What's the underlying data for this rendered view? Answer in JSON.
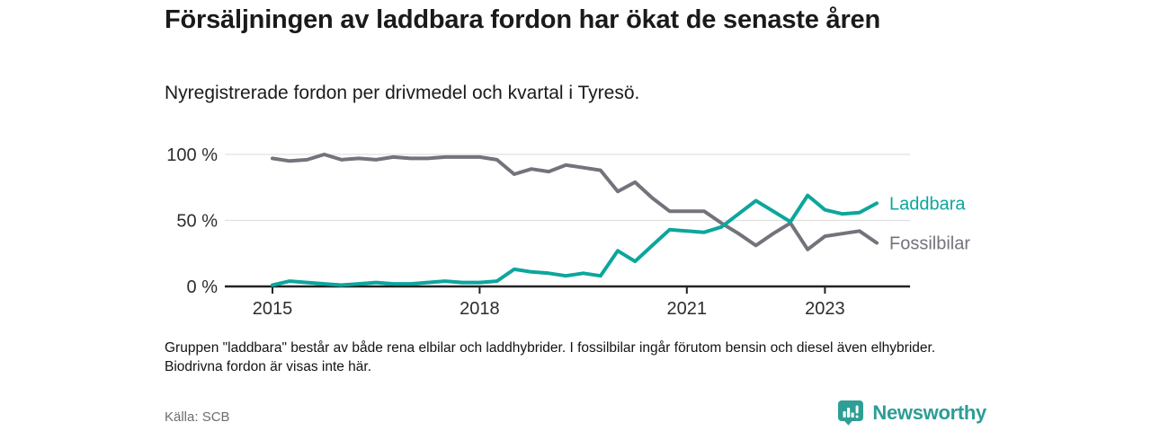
{
  "header": {
    "title": "Försäljningen av laddbara fordon har ökat de senaste åren",
    "subtitle": "Nyregistrerade fordon per drivmedel och kvartal i Tyresö."
  },
  "chart_data": {
    "type": "line",
    "title": "Nyregistrerade fordon per drivmedel och kvartal i Tyresö",
    "x_unit": "quarter",
    "quarters": [
      "2015 Q1",
      "2015 Q2",
      "2015 Q3",
      "2015 Q4",
      "2016 Q1",
      "2016 Q2",
      "2016 Q3",
      "2016 Q4",
      "2017 Q1",
      "2017 Q2",
      "2017 Q3",
      "2017 Q4",
      "2018 Q1",
      "2018 Q2",
      "2018 Q3",
      "2018 Q4",
      "2019 Q1",
      "2019 Q2",
      "2019 Q3",
      "2019 Q4",
      "2020 Q1",
      "2020 Q2",
      "2020 Q3",
      "2020 Q4",
      "2021 Q1",
      "2021 Q2",
      "2021 Q3",
      "2021 Q4",
      "2022 Q1",
      "2022 Q2",
      "2022 Q3",
      "2022 Q4",
      "2023 Q1",
      "2023 Q2",
      "2023 Q3",
      "2023 Q4"
    ],
    "series": [
      {
        "name": "Fossilbilar",
        "color": "#73737c",
        "values": [
          97,
          95,
          96,
          100,
          96,
          97,
          96,
          98,
          97,
          97,
          98,
          98,
          98,
          96,
          85,
          89,
          87,
          92,
          90,
          88,
          72,
          79,
          67,
          57,
          57,
          57,
          48,
          40,
          31,
          40,
          48,
          28,
          38,
          40,
          42,
          33
        ]
      },
      {
        "name": "Laddbara",
        "color": "#0ca69d",
        "values": [
          1,
          4,
          3,
          2,
          1,
          2,
          3,
          2,
          2,
          3,
          4,
          3,
          3,
          4,
          13,
          11,
          10,
          8,
          10,
          8,
          27,
          19,
          31,
          43,
          42,
          41,
          45,
          55,
          65,
          57,
          49,
          69,
          58,
          55,
          56,
          63
        ]
      }
    ],
    "ylim": [
      0,
      100
    ],
    "yticks": [
      "100 %",
      "50 %",
      "0 %"
    ],
    "ytick_values": [
      100,
      50,
      0
    ],
    "xticks": [
      {
        "label": "2015",
        "quarter_index": 0
      },
      {
        "label": "2018",
        "quarter_index": 12
      },
      {
        "label": "2021",
        "quarter_index": 24
      },
      {
        "label": "2023",
        "quarter_index": 32
      }
    ],
    "grid": "horizontal",
    "legend_position": "line-end-labels"
  },
  "footer": {
    "note": "Gruppen \"laddbara\" består av både rena elbilar och laddhybrider. I fossilbilar ingår förutom bensin och diesel även elhybrider. Biodrivna fordon är visas inte här.",
    "source": "Källa: SCB",
    "logo_text": "Newsworthy"
  },
  "colors": {
    "accent_teal": "#0ca69d",
    "line_gray": "#73737c",
    "logo_teal": "#2e9f97",
    "gridline": "#e0e0e0",
    "axis": "#222222"
  }
}
